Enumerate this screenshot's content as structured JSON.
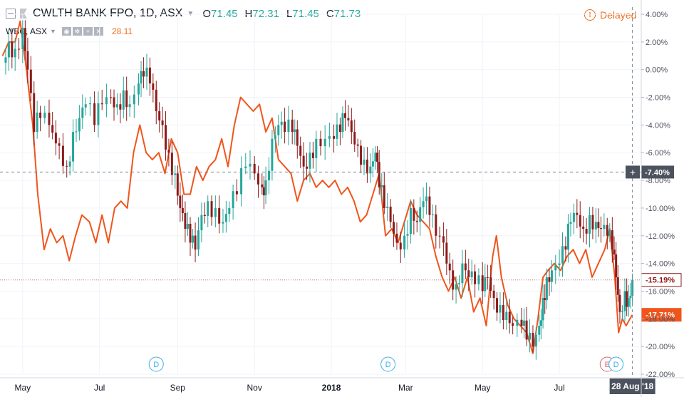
{
  "header": {
    "title": "CWLTH BANK FPO, 1D, ASX",
    "ohlc": [
      {
        "key": "O",
        "value": "71.45"
      },
      {
        "key": "H",
        "value": "72.31"
      },
      {
        "key": "L",
        "value": "71.45"
      },
      {
        "key": "C",
        "value": "71.73"
      }
    ]
  },
  "compare": {
    "symbol": "WBC, ASX",
    "value": "28.11"
  },
  "status": {
    "label": "Delayed"
  },
  "colors": {
    "up": "#26a69a",
    "down": "#8e1b1b",
    "compare_line": "#f0551c",
    "axis_text": "#50535e",
    "price_label_bg": "#ffffff",
    "grid": "#f0f3fa"
  },
  "chart_data": {
    "type": "line",
    "y_axis": {
      "unit": "%",
      "ticks": [
        "4.00%",
        "2.00%",
        "0.00%",
        "-2.00%",
        "-4.00%",
        "-6.00%",
        "-8.00%",
        "-10.00%",
        "-12.00%",
        "-14.00%",
        "-16.00%",
        "-18.00%",
        "-20.00%",
        "-22.00%"
      ],
      "ylim": [
        -22,
        4
      ]
    },
    "x_axis": {
      "ticks": [
        {
          "label": "May",
          "bold": false
        },
        {
          "label": "Jul",
          "bold": false
        },
        {
          "label": "Sep",
          "bold": false
        },
        {
          "label": "Nov",
          "bold": false
        },
        {
          "label": "2018",
          "bold": true
        },
        {
          "label": "Mar",
          "bold": false
        },
        {
          "label": "May",
          "bold": false
        },
        {
          "label": "Jul",
          "bold": false
        }
      ],
      "xlim": [
        "2017-04-13",
        "2018-09-04"
      ]
    },
    "crosshair": {
      "date": "2018-08-28",
      "date_label": "28 Aug '18",
      "y": -7.4,
      "y_label": "-7.40%"
    },
    "last_values": [
      {
        "series": "CBA",
        "value": -15.19,
        "label": "-15.19%"
      },
      {
        "series": "WBC",
        "value": -17.71,
        "label": "-17.71%"
      }
    ],
    "events": [
      {
        "date": "2017-08-15",
        "type": "D"
      },
      {
        "date": "2018-02-15",
        "type": "D"
      },
      {
        "date": "2018-08-08",
        "type": "E"
      },
      {
        "date": "2018-08-15",
        "type": "D"
      }
    ],
    "series": [
      {
        "symbol": "CBA",
        "kind": "candlestick",
        "values": [
          [
            "2017-04-15",
            0.5
          ],
          [
            "2017-04-20",
            2.0
          ],
          [
            "2017-04-25",
            1.5
          ],
          [
            "2017-05-01",
            3.0
          ],
          [
            "2017-05-05",
            0.0
          ],
          [
            "2017-05-10",
            -4.5
          ],
          [
            "2017-05-15",
            -3.5
          ],
          [
            "2017-05-22",
            -4.0
          ],
          [
            "2017-05-30",
            -5.5
          ],
          [
            "2017-06-05",
            -7.0
          ],
          [
            "2017-06-10",
            -4.5
          ],
          [
            "2017-06-15",
            -3.5
          ],
          [
            "2017-06-20",
            -2.5
          ],
          [
            "2017-06-27",
            -4.0
          ],
          [
            "2017-07-03",
            -2.5
          ],
          [
            "2017-07-10",
            -2.0
          ],
          [
            "2017-07-15",
            -2.5
          ],
          [
            "2017-07-20",
            -1.5
          ],
          [
            "2017-07-25",
            -2.5
          ],
          [
            "2017-08-01",
            -1.0
          ],
          [
            "2017-08-05",
            -0.5
          ],
          [
            "2017-08-10",
            -1.0
          ],
          [
            "2017-08-15",
            -3.0
          ],
          [
            "2017-08-20",
            -4.0
          ],
          [
            "2017-08-25",
            -6.0
          ],
          [
            "2017-08-30",
            -7.5
          ],
          [
            "2017-09-03",
            -10.0
          ],
          [
            "2017-09-07",
            -11.5
          ],
          [
            "2017-09-11",
            -12.5
          ],
          [
            "2017-09-15",
            -13.0
          ],
          [
            "2017-09-20",
            -10.5
          ],
          [
            "2017-09-25",
            -9.5
          ],
          [
            "2017-10-01",
            -10.0
          ],
          [
            "2017-10-07",
            -11.0
          ],
          [
            "2017-10-12",
            -10.0
          ],
          [
            "2017-10-18",
            -9.0
          ],
          [
            "2017-10-25",
            -7.0
          ],
          [
            "2017-11-01",
            -7.5
          ],
          [
            "2017-11-07",
            -8.5
          ],
          [
            "2017-11-10",
            -8.0
          ],
          [
            "2017-11-15",
            -5.0
          ],
          [
            "2017-11-20",
            -4.0
          ],
          [
            "2017-11-25",
            -4.5
          ],
          [
            "2017-12-01",
            -4.5
          ],
          [
            "2017-12-05",
            -5.5
          ],
          [
            "2017-12-10",
            -7.0
          ],
          [
            "2017-12-15",
            -6.0
          ],
          [
            "2017-12-20",
            -5.0
          ],
          [
            "2017-12-27",
            -5.0
          ],
          [
            "2018-01-03",
            -5.0
          ],
          [
            "2018-01-08",
            -4.5
          ],
          [
            "2018-01-12",
            -3.5
          ],
          [
            "2018-01-17",
            -4.5
          ],
          [
            "2018-01-22",
            -5.5
          ],
          [
            "2018-01-27",
            -6.5
          ],
          [
            "2018-02-01",
            -7.0
          ],
          [
            "2018-02-05",
            -6.0
          ],
          [
            "2018-02-08",
            -8.5
          ],
          [
            "2018-02-12",
            -10.0
          ],
          [
            "2018-02-17",
            -11.0
          ],
          [
            "2018-02-22",
            -12.5
          ],
          [
            "2018-02-28",
            -12.0
          ],
          [
            "2018-03-05",
            -10.0
          ],
          [
            "2018-03-10",
            -11.0
          ],
          [
            "2018-03-15",
            -9.5
          ],
          [
            "2018-03-20",
            -10.5
          ],
          [
            "2018-03-25",
            -12.0
          ],
          [
            "2018-03-31",
            -12.5
          ],
          [
            "2018-04-05",
            -14.5
          ],
          [
            "2018-04-10",
            -15.5
          ],
          [
            "2018-04-15",
            -14.0
          ],
          [
            "2018-04-20",
            -15.0
          ],
          [
            "2018-04-25",
            -15.5
          ],
          [
            "2018-05-01",
            -16.0
          ],
          [
            "2018-05-05",
            -15.0
          ],
          [
            "2018-05-10",
            -16.5
          ],
          [
            "2018-05-15",
            -17.0
          ],
          [
            "2018-05-20",
            -17.5
          ],
          [
            "2018-05-25",
            -18.5
          ],
          [
            "2018-06-01",
            -18.5
          ],
          [
            "2018-06-05",
            -19.5
          ],
          [
            "2018-06-10",
            -20.0
          ],
          [
            "2018-06-15",
            -18.5
          ],
          [
            "2018-06-18",
            -16.5
          ],
          [
            "2018-06-21",
            -15.0
          ],
          [
            "2018-06-25",
            -14.5
          ],
          [
            "2018-07-01",
            -14.0
          ],
          [
            "2018-07-06",
            -13.0
          ],
          [
            "2018-07-10",
            -11.0
          ],
          [
            "2018-07-15",
            -10.5
          ],
          [
            "2018-07-20",
            -11.5
          ],
          [
            "2018-07-25",
            -10.5
          ],
          [
            "2018-07-30",
            -11.0
          ],
          [
            "2018-08-03",
            -11.5
          ],
          [
            "2018-08-08",
            -12.0
          ],
          [
            "2018-08-12",
            -13.0
          ],
          [
            "2018-08-15",
            -15.0
          ],
          [
            "2018-08-18",
            -17.5
          ],
          [
            "2018-08-22",
            -16.0
          ],
          [
            "2018-08-25",
            -16.5
          ],
          [
            "2018-08-28",
            -15.19
          ]
        ]
      },
      {
        "symbol": "WBC",
        "kind": "line",
        "values": [
          [
            "2017-04-15",
            1.0
          ],
          [
            "2017-04-20",
            2.0
          ],
          [
            "2017-04-25",
            2.0
          ],
          [
            "2017-04-29",
            3.5
          ],
          [
            "2017-05-04",
            0.0
          ],
          [
            "2017-05-09",
            -4.0
          ],
          [
            "2017-05-13",
            -9.0
          ],
          [
            "2017-05-18",
            -13.0
          ],
          [
            "2017-05-23",
            -11.5
          ],
          [
            "2017-05-28",
            -12.5
          ],
          [
            "2017-06-02",
            -12.0
          ],
          [
            "2017-06-07",
            -13.8
          ],
          [
            "2017-06-12",
            -12.0
          ],
          [
            "2017-06-17",
            -10.5
          ],
          [
            "2017-06-23",
            -11.0
          ],
          [
            "2017-06-28",
            -12.5
          ],
          [
            "2017-07-03",
            -10.5
          ],
          [
            "2017-07-08",
            -12.5
          ],
          [
            "2017-07-13",
            -10.0
          ],
          [
            "2017-07-18",
            -9.5
          ],
          [
            "2017-07-23",
            -10.0
          ],
          [
            "2017-07-28",
            -6.0
          ],
          [
            "2017-08-02",
            -4.0
          ],
          [
            "2017-08-07",
            -6.0
          ],
          [
            "2017-08-12",
            -6.5
          ],
          [
            "2017-08-17",
            -6.0
          ],
          [
            "2017-08-22",
            -7.5
          ],
          [
            "2017-08-27",
            -5.0
          ],
          [
            "2017-09-01",
            -6.0
          ],
          [
            "2017-09-06",
            -9.0
          ],
          [
            "2017-09-11",
            -9.0
          ],
          [
            "2017-09-16",
            -7.0
          ],
          [
            "2017-09-21",
            -8.0
          ],
          [
            "2017-09-26",
            -7.0
          ],
          [
            "2017-10-01",
            -6.5
          ],
          [
            "2017-10-06",
            -5.0
          ],
          [
            "2017-10-11",
            -7.0
          ],
          [
            "2017-10-16",
            -4.0
          ],
          [
            "2017-10-21",
            -2.0
          ],
          [
            "2017-10-26",
            -2.5
          ],
          [
            "2017-10-31",
            -3.0
          ],
          [
            "2017-11-05",
            -2.5
          ],
          [
            "2017-11-10",
            -4.5
          ],
          [
            "2017-11-15",
            -3.5
          ],
          [
            "2017-11-20",
            -6.5
          ],
          [
            "2017-11-25",
            -7.0
          ],
          [
            "2017-11-30",
            -7.5
          ],
          [
            "2017-12-05",
            -9.5
          ],
          [
            "2017-12-10",
            -8.0
          ],
          [
            "2017-12-15",
            -7.5
          ],
          [
            "2017-12-20",
            -8.5
          ],
          [
            "2017-12-25",
            -8.0
          ],
          [
            "2017-12-30",
            -8.5
          ],
          [
            "2018-01-04",
            -8.0
          ],
          [
            "2018-01-09",
            -9.0
          ],
          [
            "2018-01-14",
            -8.5
          ],
          [
            "2018-01-19",
            -9.5
          ],
          [
            "2018-01-24",
            -11.0
          ],
          [
            "2018-01-29",
            -10.5
          ],
          [
            "2018-02-03",
            -9.0
          ],
          [
            "2018-02-08",
            -7.5
          ],
          [
            "2018-02-13",
            -12.0
          ],
          [
            "2018-02-18",
            -11.5
          ],
          [
            "2018-02-23",
            -12.5
          ],
          [
            "2018-02-28",
            -11.0
          ],
          [
            "2018-03-05",
            -9.5
          ],
          [
            "2018-03-10",
            -10.5
          ],
          [
            "2018-03-15",
            -11.0
          ],
          [
            "2018-03-20",
            -11.5
          ],
          [
            "2018-03-25",
            -13.5
          ],
          [
            "2018-03-30",
            -15.0
          ],
          [
            "2018-04-04",
            -16.0
          ],
          [
            "2018-04-09",
            -15.0
          ],
          [
            "2018-04-14",
            -16.5
          ],
          [
            "2018-04-19",
            -15.0
          ],
          [
            "2018-04-24",
            -17.5
          ],
          [
            "2018-04-29",
            -16.5
          ],
          [
            "2018-05-04",
            -18.5
          ],
          [
            "2018-05-09",
            -13.5
          ],
          [
            "2018-05-12",
            -12.0
          ],
          [
            "2018-05-16",
            -15.0
          ],
          [
            "2018-05-21",
            -17.0
          ],
          [
            "2018-05-26",
            -18.0
          ],
          [
            "2018-05-31",
            -18.5
          ],
          [
            "2018-06-05",
            -19.0
          ],
          [
            "2018-06-10",
            -20.5
          ],
          [
            "2018-06-14",
            -18.0
          ],
          [
            "2018-06-18",
            -15.0
          ],
          [
            "2018-06-22",
            -14.5
          ],
          [
            "2018-06-27",
            -14.0
          ],
          [
            "2018-07-02",
            -14.5
          ],
          [
            "2018-07-07",
            -13.5
          ],
          [
            "2018-07-12",
            -13.0
          ],
          [
            "2018-07-17",
            -14.0
          ],
          [
            "2018-07-22",
            -13.0
          ],
          [
            "2018-07-27",
            -15.0
          ],
          [
            "2018-08-01",
            -14.0
          ],
          [
            "2018-08-06",
            -13.0
          ],
          [
            "2018-08-10",
            -11.5
          ],
          [
            "2018-08-14",
            -15.0
          ],
          [
            "2018-08-17",
            -19.0
          ],
          [
            "2018-08-20",
            -18.0
          ],
          [
            "2018-08-23",
            -18.5
          ],
          [
            "2018-08-26",
            -18.0
          ],
          [
            "2018-08-28",
            -17.71
          ]
        ]
      }
    ]
  }
}
